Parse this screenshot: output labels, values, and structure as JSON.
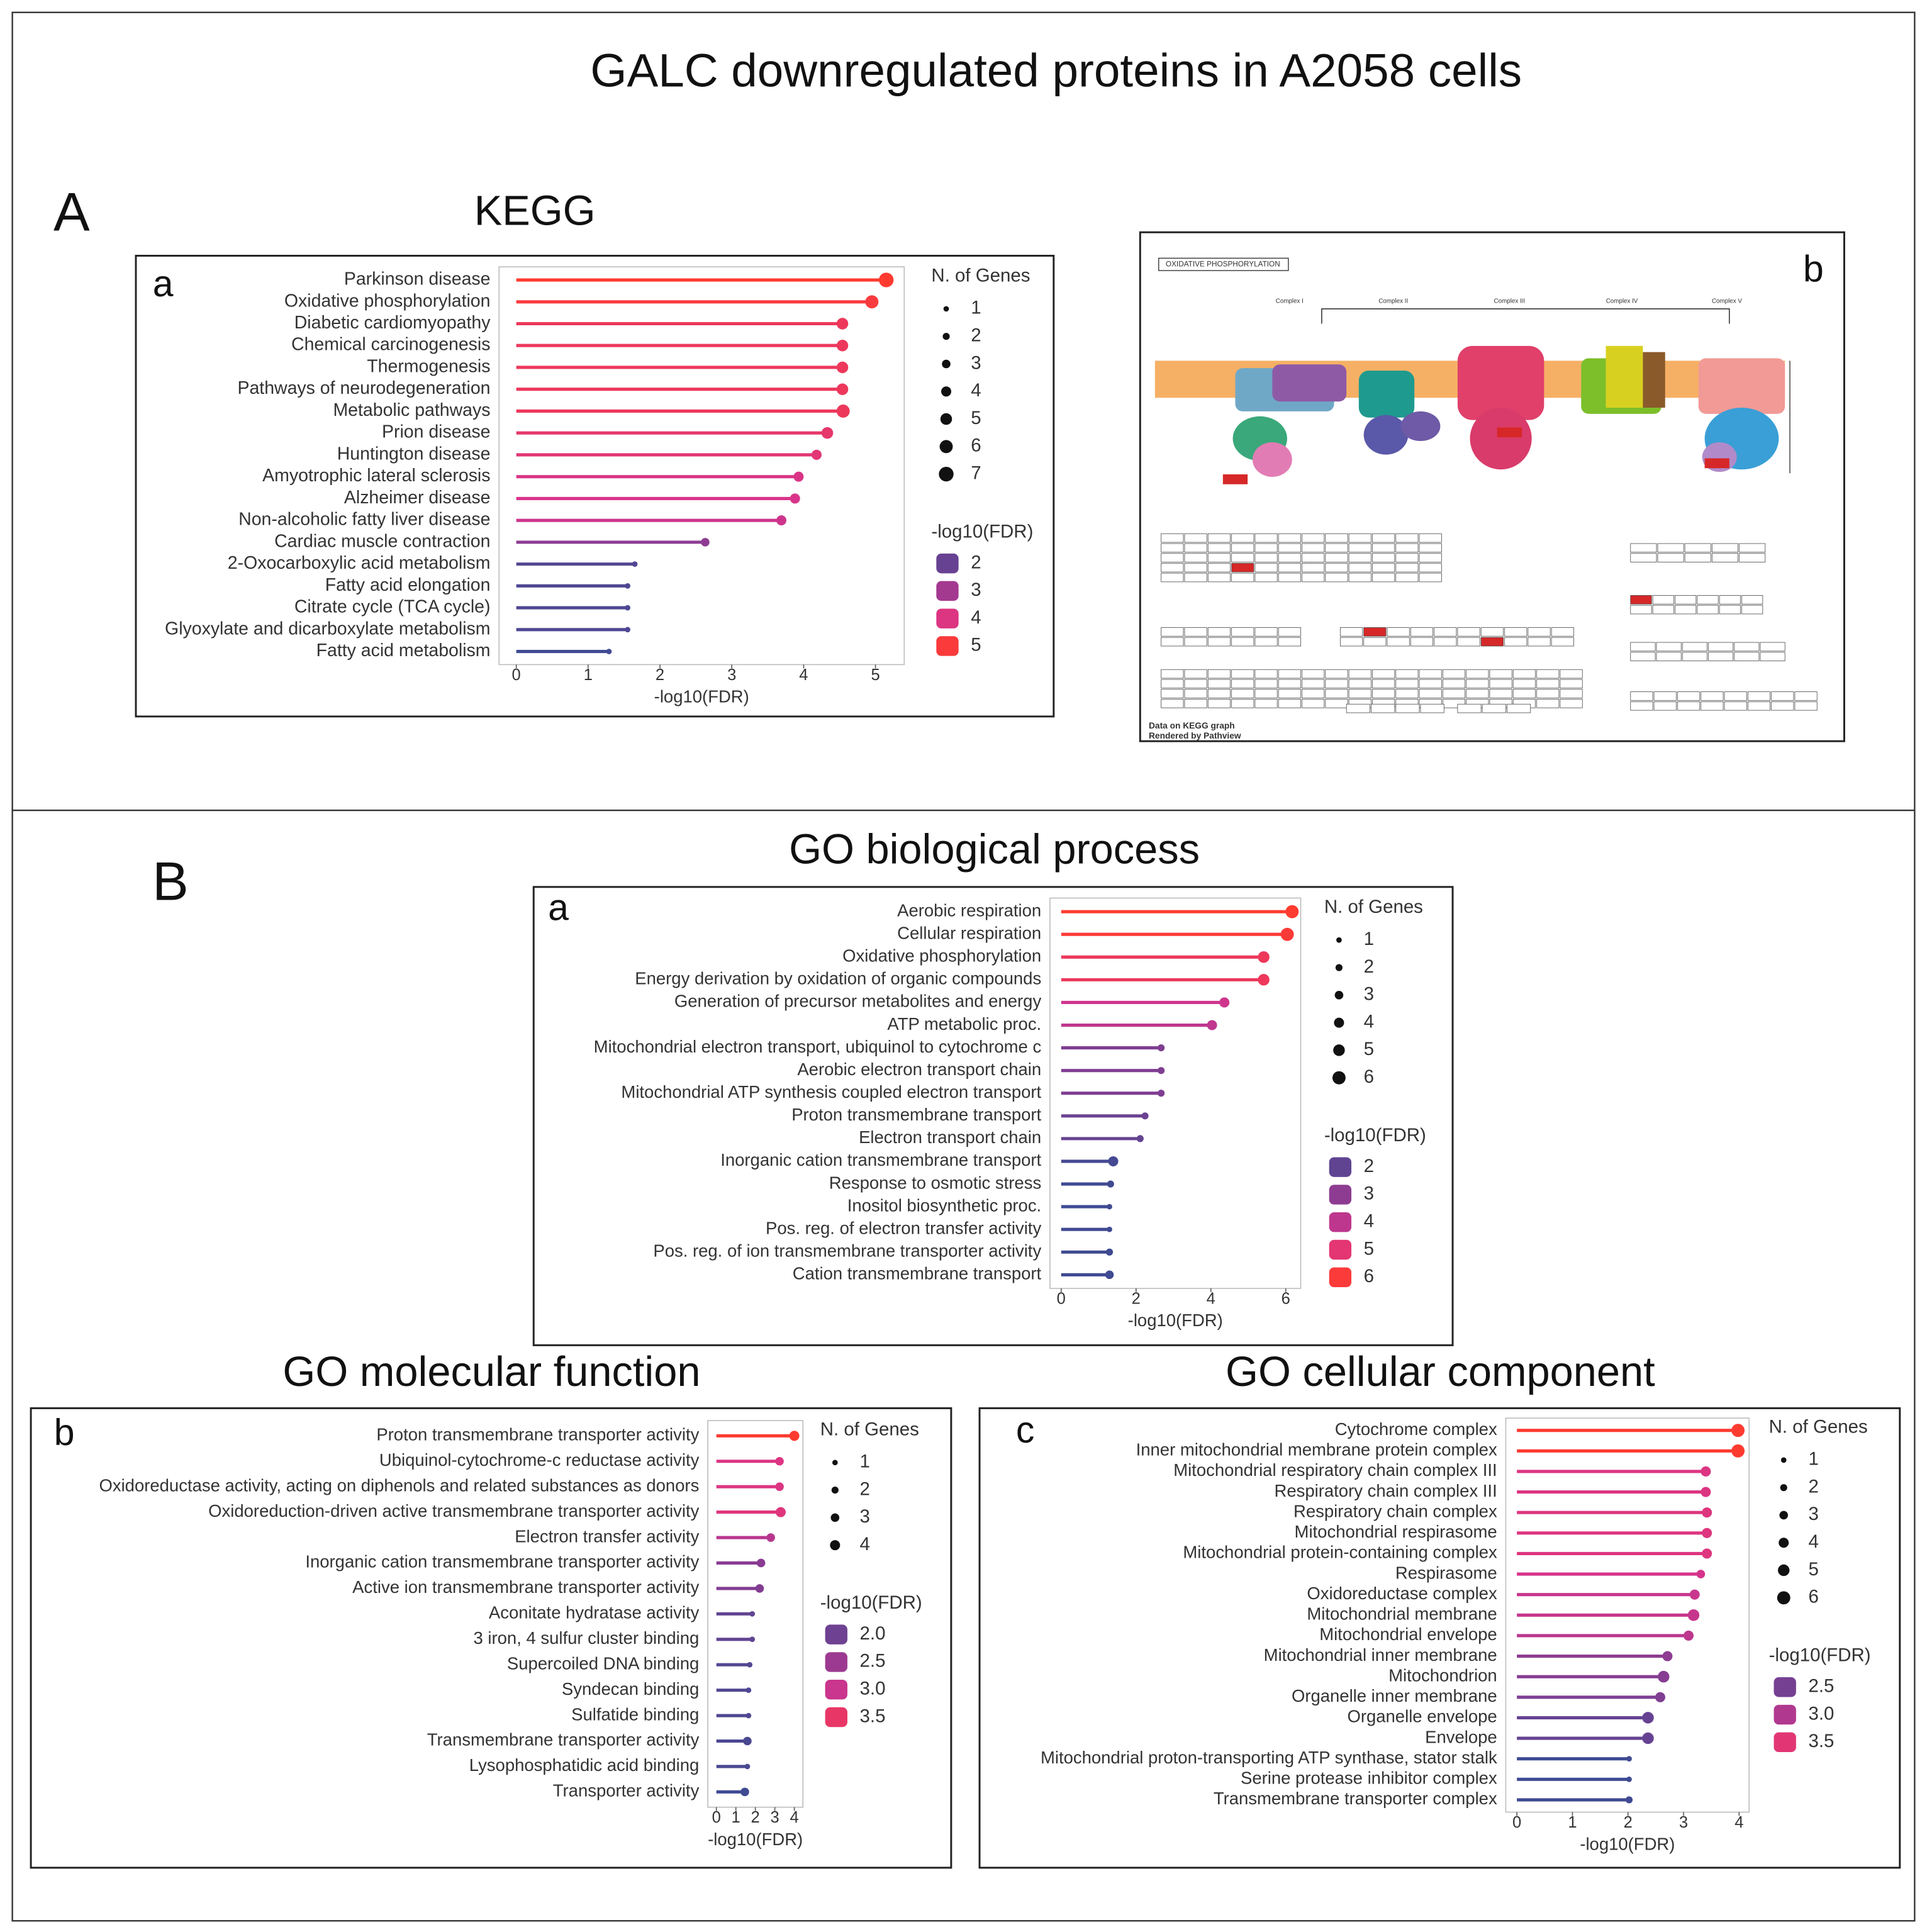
{
  "title": "GALC downregulated proteins in A2058 cells",
  "sections": [
    "A",
    "B"
  ],
  "diagram": {
    "panel": "b",
    "title": "OXIDATIVE PHOSPHORYLATION",
    "complexes": [
      "Complex I",
      "Complex II",
      "Complex III",
      "Complex IV",
      "Complex V"
    ],
    "footer": [
      "Data on KEGG graph",
      "Rendered by Pathview"
    ]
  },
  "chart_data": [
    {
      "type": "lollipop",
      "title": "KEGG",
      "panel": "a",
      "categories": [
        "Parkinson disease",
        "Oxidative phosphorylation",
        "Diabetic cardiomyopathy",
        "Chemical carcinogenesis",
        "Thermogenesis",
        "Pathways of neurodegeneration",
        "Metabolic pathways",
        "Prion disease",
        "Huntington disease",
        "Amyotrophic lateral sclerosis",
        "Alzheimer disease",
        "Non-alcoholic fatty liver disease",
        "Cardiac muscle contraction",
        "2-Oxocarboxylic acid metabolism",
        "Fatty acid elongation",
        "Citrate cycle (TCA cycle)",
        "Glyoxylate and dicarboxylate metabolism",
        "Fatty acid metabolism"
      ],
      "values": [
        5.15,
        4.95,
        4.54,
        4.54,
        4.54,
        4.54,
        4.55,
        4.33,
        4.18,
        3.93,
        3.88,
        3.69,
        2.63,
        1.65,
        1.55,
        1.55,
        1.55,
        1.29
      ],
      "sizes": [
        7,
        6,
        5,
        5,
        5,
        5,
        6,
        5,
        4,
        4,
        4,
        4,
        3,
        1,
        1,
        1,
        1,
        1
      ],
      "xlabel": "-log10(FDR)",
      "xlim": [
        -0.24,
        5.4
      ],
      "xticks": [
        0,
        1,
        2,
        3,
        4,
        5
      ],
      "size_legend_title": "N. of Genes",
      "size_legend": [
        1,
        2,
        3,
        4,
        5,
        6,
        7
      ],
      "color_legend_title": "-log10(FDR)",
      "color_legend": [
        2,
        3,
        4,
        5
      ],
      "color_scale": [
        "#3f4a92",
        "#8a3c92",
        "#d8348c",
        "#ff3b30"
      ]
    },
    {
      "type": "lollipop",
      "title": "GO biological process",
      "panel": "a",
      "categories": [
        "Aerobic respiration",
        "Cellular respiration",
        "Oxidative phosphorylation",
        "Energy derivation by oxidation of organic compounds",
        "Generation of precursor metabolites and energy",
        "ATP metabolic proc.",
        "Mitochondrial electron transport, ubiquinol to cytochrome c",
        "Aerobic electron transport chain",
        "Mitochondrial ATP synthesis coupled electron transport",
        "Proton transmembrane transport",
        "Electron transport chain",
        "Inorganic cation transmembrane transport",
        "Response to osmotic stress",
        "Inositol biosynthetic proc.",
        "Pos. reg. of electron transfer activity",
        "Pos. reg. of ion transmembrane transporter activity",
        "Cation transmembrane transport"
      ],
      "values": [
        6.17,
        6.04,
        5.41,
        5.41,
        4.36,
        4.03,
        2.67,
        2.67,
        2.67,
        2.24,
        2.11,
        1.39,
        1.32,
        1.29,
        1.29,
        1.29,
        1.29
      ],
      "sizes": [
        6,
        6,
        5,
        5,
        4,
        4,
        2,
        2,
        2,
        2,
        2,
        4,
        2,
        1,
        1,
        2,
        3
      ],
      "xlabel": "-log10(FDR)",
      "xlim": [
        -0.3,
        6.4
      ],
      "xticks": [
        0,
        2,
        4,
        6
      ],
      "size_legend_title": "N. of Genes",
      "size_legend": [
        1,
        2,
        3,
        4,
        5,
        6
      ],
      "color_legend_title": "-log10(FDR)",
      "color_legend": [
        2,
        3,
        4,
        5,
        6
      ],
      "color_scale": [
        "#3f4a92",
        "#8a3c92",
        "#d8348c",
        "#ff3b30"
      ]
    },
    {
      "type": "lollipop",
      "title": "GO molecular function",
      "panel": "b",
      "categories": [
        "Proton transmembrane transporter activity",
        "Ubiquinol-cytochrome-c reductase activity",
        "Oxidoreductase activity, acting on diphenols and related substances as donors",
        "Oxidoreduction-driven active transmembrane transporter activity",
        "Electron transfer activity",
        "Inorganic cation transmembrane transporter activity",
        "Active ion transmembrane transporter activity",
        "Aconitate hydratase activity",
        "3 iron, 4 sulfur cluster binding",
        "Supercoiled DNA binding",
        "Syndecan binding",
        "Sulfatide binding",
        "Transmembrane transporter activity",
        "Lysophosphatidic acid binding",
        "Transporter activity"
      ],
      "values": [
        4.0,
        3.24,
        3.24,
        3.3,
        2.79,
        2.29,
        2.22,
        1.84,
        1.84,
        1.71,
        1.65,
        1.65,
        1.59,
        1.59,
        1.46
      ],
      "sizes": [
        4,
        3,
        3,
        4,
        3,
        3,
        3,
        1,
        1,
        1,
        1,
        1,
        3,
        1,
        3
      ],
      "xlabel": "-log10(FDR)",
      "xlim": [
        -0.44,
        4.44
      ],
      "xticks": [
        0,
        1,
        2,
        3,
        4
      ],
      "size_legend_title": "N. of Genes",
      "size_legend": [
        1,
        2,
        3,
        4
      ],
      "color_legend_title": "-log10(FDR)",
      "color_legend": [
        {
          "value": 2,
          "label": "2.0"
        },
        2.5,
        {
          "value": 3,
          "label": "3.0"
        },
        3.5
      ],
      "color_scale": [
        "#3f4a92",
        "#8a3c92",
        "#d8348c",
        "#ff3b30"
      ]
    },
    {
      "type": "lollipop",
      "title": "GO cellular component",
      "panel": "c",
      "categories": [
        "Cytochrome complex",
        "Inner mitochondrial membrane protein complex",
        "Mitochondrial respiratory chain complex III",
        "Respiratory chain complex III",
        "Respiratory chain complex",
        "Mitochondrial respirasome",
        "Mitochondrial protein-containing complex",
        "Respirasome",
        "Oxidoreductase complex",
        "Mitochondrial membrane",
        "Mitochondrial envelope",
        "Mitochondrial inner membrane",
        "Mitochondrion",
        "Organelle inner membrane",
        "Organelle envelope",
        "Envelope",
        "Mitochondrial proton-transporting ATP synthase, stator stalk",
        "Serine protease inhibitor complex",
        "Transmembrane transporter complex"
      ],
      "values": [
        3.98,
        3.98,
        3.4,
        3.4,
        3.42,
        3.42,
        3.42,
        3.31,
        3.2,
        3.18,
        3.09,
        2.71,
        2.64,
        2.58,
        2.36,
        2.36,
        2.02,
        2.02,
        2.02
      ],
      "sizes": [
        6,
        6,
        4,
        4,
        4,
        4,
        4,
        3,
        4,
        5,
        4,
        4,
        5,
        4,
        5,
        5,
        1,
        1,
        2
      ],
      "xlabel": "-log10(FDR)",
      "xlim": [
        -0.2,
        4.18
      ],
      "xticks": [
        0,
        1,
        2,
        3,
        4
      ],
      "size_legend_title": "N. of Genes",
      "size_legend": [
        1,
        2,
        3,
        4,
        5,
        6
      ],
      "color_legend_title": "-log10(FDR)",
      "color_legend": [
        2.5,
        {
          "value": 3,
          "label": "3.0"
        },
        3.5
      ],
      "color_scale": [
        "#3f4a92",
        "#8a3c92",
        "#d8348c",
        "#ff3b30"
      ]
    }
  ]
}
